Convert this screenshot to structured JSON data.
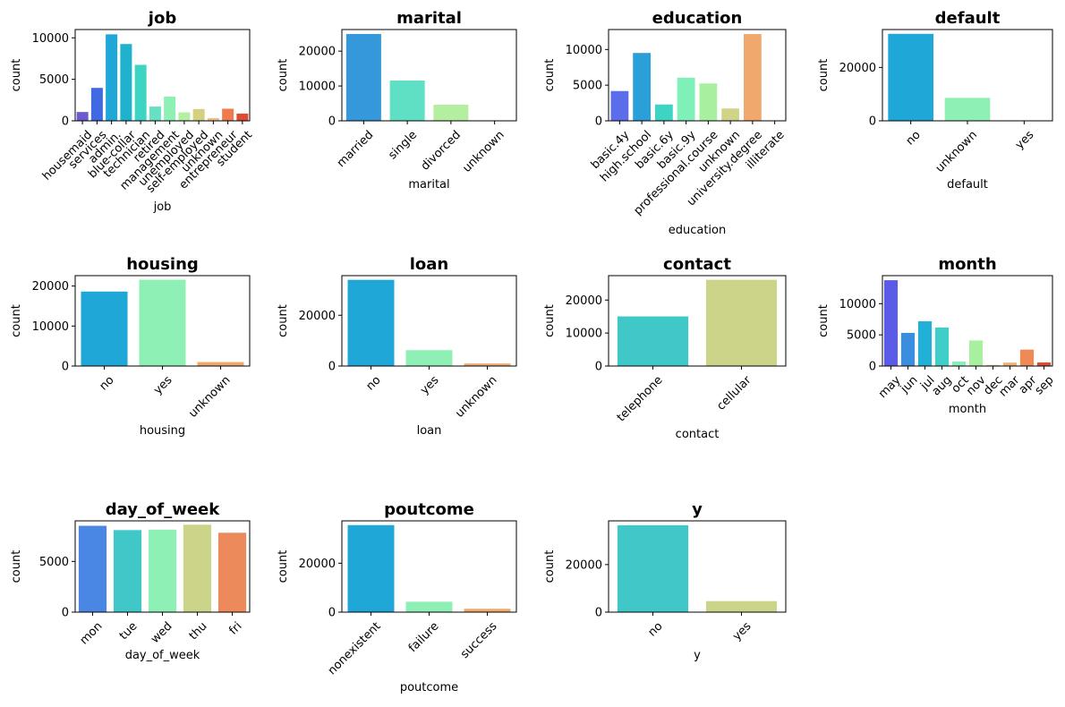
{
  "chart_data": [
    {
      "type": "bar",
      "title": "job",
      "xlabel": "job",
      "ylabel": "count",
      "categories": [
        "housemaid",
        "services",
        "admin.",
        "blue-collar",
        "technician",
        "retired",
        "management",
        "unemployed",
        "self-employed",
        "unknown",
        "entrepreneur",
        "student"
      ],
      "values": [
        1060,
        3969,
        10422,
        9254,
        6743,
        1720,
        2924,
        1014,
        1421,
        330,
        1456,
        875
      ],
      "ylim": [
        0,
        11000
      ],
      "yticks": [
        0,
        5000,
        10000
      ],
      "grid": false,
      "colors": [
        "#6a5acd",
        "#4169e1",
        "#1ea7d7",
        "#20b2cc",
        "#3dd4c4",
        "#66e0c0",
        "#8ef0b4",
        "#b4f0a0",
        "#d4d080",
        "#f0c080",
        "#f07a50",
        "#e04a30"
      ]
    },
    {
      "type": "bar",
      "title": "marital",
      "xlabel": "marital",
      "ylabel": "count",
      "categories": [
        "married",
        "single",
        "divorced",
        "unknown"
      ],
      "values": [
        24928,
        11568,
        4612,
        80
      ],
      "ylim": [
        0,
        26200
      ],
      "yticks": [
        0,
        10000,
        20000
      ],
      "grid": false,
      "colors": [
        "#3498db",
        "#5fe0c4",
        "#b4eea0",
        "#f07a50"
      ]
    },
    {
      "type": "bar",
      "title": "education",
      "xlabel": "education",
      "ylabel": "count",
      "categories": [
        "basic.4y",
        "high.school",
        "basic.6y",
        "basic.9y",
        "professional.course",
        "unknown",
        "university.degree",
        "illiterate"
      ],
      "values": [
        4176,
        9515,
        2292,
        6045,
        5243,
        1731,
        12168,
        18
      ],
      "ylim": [
        0,
        12800
      ],
      "yticks": [
        0,
        5000,
        10000
      ],
      "grid": false,
      "colors": [
        "#5b6de8",
        "#2a9fd8",
        "#3dd4c4",
        "#7ef0b8",
        "#a8f0a0",
        "#cfd488",
        "#f0a86c",
        "#e04a30"
      ]
    },
    {
      "type": "bar",
      "title": "default",
      "xlabel": "default",
      "ylabel": "count",
      "categories": [
        "no",
        "unknown",
        "yes"
      ],
      "values": [
        32588,
        8597,
        3
      ],
      "ylim": [
        0,
        34200
      ],
      "yticks": [
        0,
        20000
      ],
      "grid": false,
      "colors": [
        "#1ea7d7",
        "#8ef0b4",
        "#f0a86c"
      ]
    },
    {
      "type": "bar",
      "title": "housing",
      "xlabel": "housing",
      "ylabel": "count",
      "categories": [
        "no",
        "yes",
        "unknown"
      ],
      "values": [
        18622,
        21576,
        990
      ],
      "ylim": [
        0,
        22600
      ],
      "yticks": [
        0,
        10000,
        20000
      ],
      "grid": false,
      "colors": [
        "#1ea7d7",
        "#8ef0b4",
        "#f0a86c"
      ]
    },
    {
      "type": "bar",
      "title": "loan",
      "xlabel": "loan",
      "ylabel": "count",
      "categories": [
        "no",
        "yes",
        "unknown"
      ],
      "values": [
        33950,
        6248,
        990
      ],
      "ylim": [
        0,
        35600
      ],
      "yticks": [
        0,
        20000
      ],
      "grid": false,
      "colors": [
        "#1ea7d7",
        "#8ef0b4",
        "#f0a86c"
      ]
    },
    {
      "type": "bar",
      "title": "contact",
      "xlabel": "contact",
      "ylabel": "count",
      "categories": [
        "telephone",
        "cellular"
      ],
      "values": [
        15044,
        26144
      ],
      "ylim": [
        0,
        27400
      ],
      "yticks": [
        0,
        10000,
        20000
      ],
      "grid": false,
      "colors": [
        "#40c8c8",
        "#ccd48a"
      ]
    },
    {
      "type": "bar",
      "title": "month",
      "xlabel": "month",
      "ylabel": "count",
      "categories": [
        "may",
        "jun",
        "jul",
        "aug",
        "oct",
        "nov",
        "dec",
        "mar",
        "apr",
        "sep"
      ],
      "values": [
        13769,
        5318,
        7174,
        6178,
        718,
        4101,
        182,
        546,
        2632,
        570
      ],
      "ylim": [
        0,
        14500
      ],
      "yticks": [
        0,
        5000,
        10000
      ],
      "grid": false,
      "colors": [
        "#5a5ce8",
        "#3a8ee0",
        "#22b0d8",
        "#40cec8",
        "#86f0b8",
        "#a8f0a0",
        "#cfd488",
        "#f0b070",
        "#f08a55",
        "#e04a30"
      ]
    },
    {
      "type": "bar",
      "title": "day_of_week",
      "xlabel": "day_of_week",
      "ylabel": "count",
      "categories": [
        "mon",
        "tue",
        "wed",
        "thu",
        "fri"
      ],
      "values": [
        8514,
        8090,
        8134,
        8623,
        7827
      ],
      "ylim": [
        0,
        9000
      ],
      "yticks": [
        0,
        5000
      ],
      "grid": false,
      "colors": [
        "#4a86e4",
        "#40c8c8",
        "#8ef0b4",
        "#ccd48a",
        "#ec8a5c"
      ]
    },
    {
      "type": "bar",
      "title": "poutcome",
      "xlabel": "poutcome",
      "ylabel": "count",
      "categories": [
        "nonexistent",
        "failure",
        "success"
      ],
      "values": [
        35563,
        4252,
        1373
      ],
      "ylim": [
        0,
        37300
      ],
      "yticks": [
        0,
        20000
      ],
      "grid": false,
      "colors": [
        "#1ea7d7",
        "#8ef0b4",
        "#f0a86c"
      ]
    },
    {
      "type": "bar",
      "title": "y",
      "xlabel": "y",
      "ylabel": "count",
      "categories": [
        "no",
        "yes"
      ],
      "values": [
        36548,
        4640
      ],
      "ylim": [
        0,
        38400
      ],
      "yticks": [
        0,
        20000
      ],
      "grid": false,
      "colors": [
        "#40c8c8",
        "#ccd48a"
      ]
    }
  ]
}
